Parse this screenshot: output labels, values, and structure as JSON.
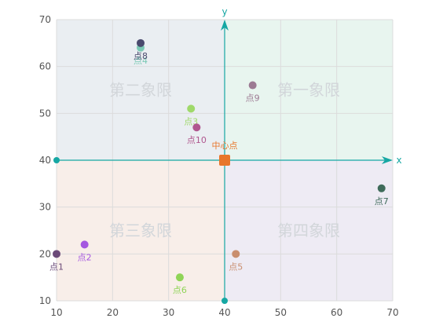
{
  "chart_data": {
    "type": "scatter",
    "xlim": [
      10,
      70
    ],
    "ylim": [
      10,
      70
    ],
    "x_ticks": [
      10,
      20,
      30,
      40,
      50,
      60,
      70
    ],
    "y_ticks": [
      10,
      20,
      30,
      40,
      50,
      60,
      70
    ],
    "grid": true,
    "center": {
      "x": 40,
      "y": 40,
      "label": "中心点",
      "color": "#e8762b"
    },
    "axes": {
      "x_label": "x",
      "y_label": "y",
      "color": "#16a7a3"
    },
    "quadrants": [
      {
        "label": "第一象限",
        "x_range": [
          40,
          70
        ],
        "y_range": [
          40,
          70
        ],
        "fill": "#e8f5ef"
      },
      {
        "label": "第二象限",
        "x_range": [
          10,
          40
        ],
        "y_range": [
          40,
          70
        ],
        "fill": "#eaeef2"
      },
      {
        "label": "第三象限",
        "x_range": [
          10,
          40
        ],
        "y_range": [
          10,
          40
        ],
        "fill": "#f8eee9"
      },
      {
        "label": "第四象限",
        "x_range": [
          40,
          70
        ],
        "y_range": [
          10,
          40
        ],
        "fill": "#eeebf4"
      }
    ],
    "points": [
      {
        "name": "点1",
        "x": 10,
        "y": 20,
        "color": "#6b4a78"
      },
      {
        "name": "点2",
        "x": 15,
        "y": 22,
        "color": "#a558e0"
      },
      {
        "name": "点3",
        "x": 34,
        "y": 51,
        "color": "#9fd96a"
      },
      {
        "name": "点4",
        "x": 25,
        "y": 64,
        "color": "#7bc9b5"
      },
      {
        "name": "点5",
        "x": 42,
        "y": 20,
        "color": "#c98e6e"
      },
      {
        "name": "点6",
        "x": 32,
        "y": 15,
        "color": "#8fd457"
      },
      {
        "name": "点7",
        "x": 68,
        "y": 34,
        "color": "#3f6b5a"
      },
      {
        "name": "点8",
        "x": 25,
        "y": 65,
        "color": "#4a4a6e"
      },
      {
        "name": "点9",
        "x": 45,
        "y": 56,
        "color": "#9c7a93"
      },
      {
        "name": "点10",
        "x": 35,
        "y": 47,
        "color": "#b0578f"
      }
    ]
  }
}
